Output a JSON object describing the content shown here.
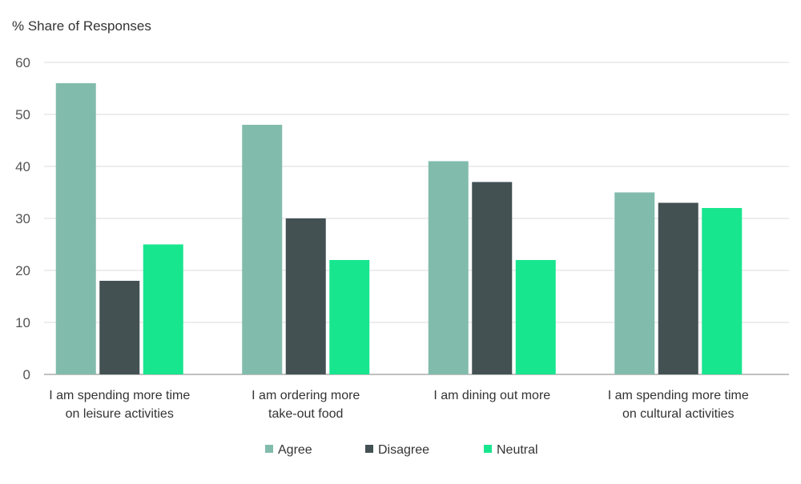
{
  "chart_data": {
    "type": "bar",
    "title": "",
    "xlabel": "",
    "ylabel": "% Share of Responses",
    "ylim": [
      0,
      60
    ],
    "yticks": [
      0,
      10,
      20,
      30,
      40,
      50,
      60
    ],
    "grid": true,
    "legend_position": "bottom",
    "categories": [
      [
        "I am spending more time",
        "on leisure activities"
      ],
      [
        "I am ordering more",
        "take-out food"
      ],
      [
        "I am dining out more"
      ],
      [
        "I am spending more time",
        "on cultural activities"
      ]
    ],
    "series": [
      {
        "name": "Agree",
        "color": "#81bbac",
        "values": [
          56,
          48,
          41,
          35
        ]
      },
      {
        "name": "Disagree",
        "color": "#435153",
        "values": [
          18,
          30,
          37,
          33
        ]
      },
      {
        "name": "Neutral",
        "color": "#18e68f",
        "values": [
          25,
          22,
          22,
          32
        ]
      }
    ]
  }
}
